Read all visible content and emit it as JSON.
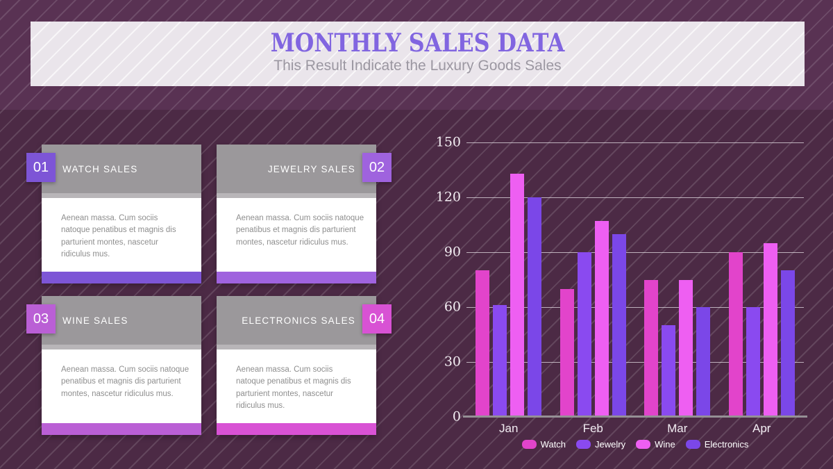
{
  "header": {
    "title": "MONTHLY SALES DATA",
    "subtitle": "This Result Indicate the Luxury Goods Sales"
  },
  "colors": {
    "page_bg": "#4c2a45",
    "top_band_bg": "#593253",
    "banner_bg": "#eae5eb",
    "title_text": "#8165e0",
    "subtitle_text": "#9b97a1",
    "card_header_bg": "#9b989b",
    "axis_text": "#f3eef3"
  },
  "cards": [
    {
      "number": "01",
      "title": "WATCH SALES",
      "body": "Aenean massa. Cum sociis\nnatoque penatibus et magnis dis\nparturient montes, nascetur\nridiculus mus.",
      "accent": "#7d55d6"
    },
    {
      "number": "02",
      "title": "JEWELRY SALES",
      "body": "Aenean massa. Cum sociis natoque\npenatibus et magnis dis parturient\nmontes, nascetur ridiculus mus.",
      "accent": "#9f63de"
    },
    {
      "number": "03",
      "title": "WINE SALES",
      "body": "Aenean massa. Cum sociis natoque\npenatibus et magnis dis parturient\nmontes, nascetur ridiculus mus.",
      "accent": "#ba5fd5"
    },
    {
      "number": "04",
      "title": "ELECTRONICS SALES",
      "body": "Aenean massa. Cum sociis\nnatoque penatibus et magnis dis\nparturient montes, nascetur\nridiculus mus.",
      "accent": "#d852d4"
    }
  ],
  "chart_data": {
    "type": "bar",
    "categories": [
      "Jan",
      "Feb",
      "Mar",
      "Apr"
    ],
    "series": [
      {
        "name": "Watch",
        "color": "#e244cb",
        "values": [
          80,
          70,
          75,
          90
        ]
      },
      {
        "name": "Jewelry",
        "color": "#8a4af0",
        "values": [
          61,
          90,
          50,
          60
        ]
      },
      {
        "name": "Wine",
        "color": "#ee5ff2",
        "values": [
          133,
          107,
          75,
          95
        ]
      },
      {
        "name": "Electronics",
        "color": "#7b47e8",
        "values": [
          120,
          100,
          60,
          80
        ]
      }
    ],
    "ylim": [
      0,
      150
    ],
    "yticks": [
      0,
      30,
      60,
      90,
      120,
      150
    ],
    "grid": true,
    "legend_position": "bottom"
  }
}
